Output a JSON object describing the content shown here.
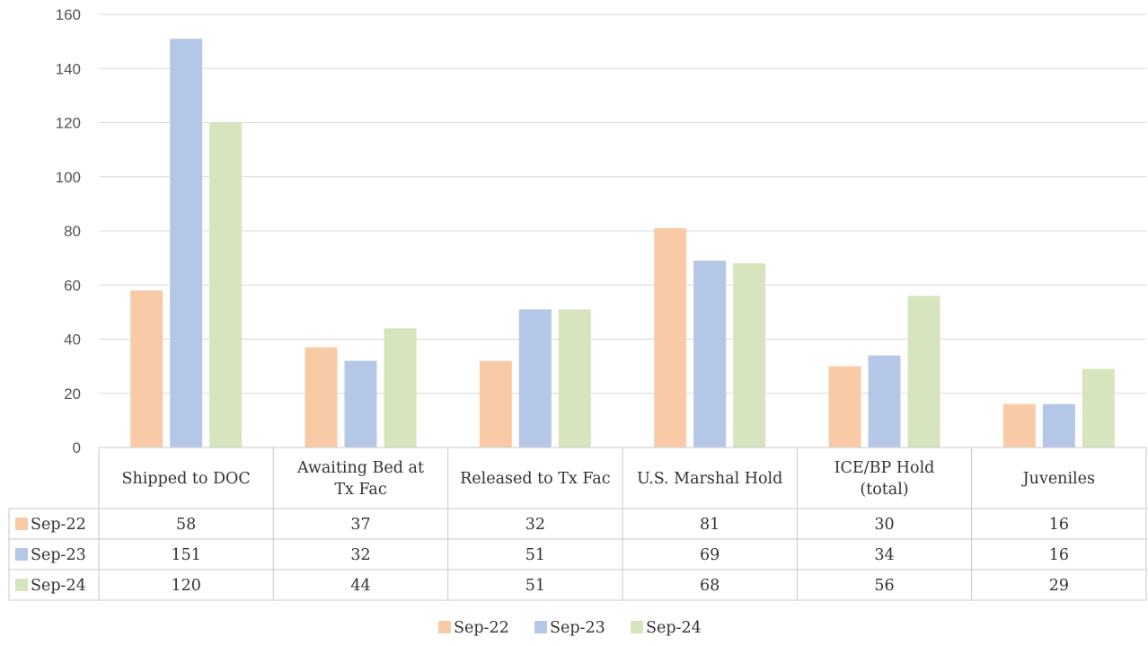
{
  "chart_data": {
    "type": "bar",
    "categories": [
      [
        "Shipped to DOC"
      ],
      [
        "Awaiting Bed at",
        "Tx Fac"
      ],
      [
        "Released to Tx Fac"
      ],
      [
        "U.S. Marshal Hold"
      ],
      [
        "ICE/BP Hold",
        "(total)"
      ],
      [
        "Juveniles"
      ]
    ],
    "series": [
      {
        "name": "Sep-22",
        "color": "#f8cba6",
        "values": [
          58,
          37,
          32,
          81,
          30,
          16
        ]
      },
      {
        "name": "Sep-23",
        "color": "#b4c7e7",
        "values": [
          151,
          32,
          51,
          69,
          34,
          16
        ]
      },
      {
        "name": "Sep-24",
        "color": "#d6e5bd",
        "values": [
          120,
          44,
          51,
          68,
          56,
          29
        ]
      }
    ],
    "ylim": [
      0,
      160
    ],
    "yticks": [
      0,
      20,
      40,
      60,
      80,
      100,
      120,
      140,
      160
    ],
    "grid": true,
    "legend": "bottom",
    "data_table": true,
    "title": "",
    "xlabel": "",
    "ylabel": ""
  }
}
